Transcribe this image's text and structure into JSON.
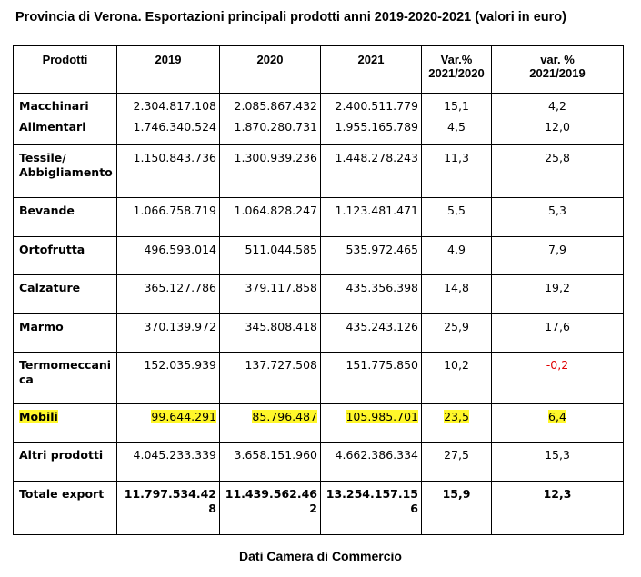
{
  "title": "Provincia di Verona. Esportazioni principali prodotti anni 2019-2020-2021 (valori in euro)",
  "headers": {
    "prodotti": "Prodotti",
    "y2019": "2019",
    "y2020": "2020",
    "y2021": "2021",
    "var1_l1": "Var.%",
    "var1_l2": "2021/2020",
    "var2_l1": "var. %",
    "var2_l2": "2021/2019"
  },
  "rows": [
    {
      "name": "Macchinari",
      "v2019": "2.304.817.108",
      "v2020": "2.085.867.432",
      "v2021": "2.400.511.779",
      "var2120": "15,1",
      "var2119": "4,2"
    },
    {
      "name": "Alimentari",
      "v2019": "1.746.340.524",
      "v2020": "1.870.280.731",
      "v2021": "1.955.165.789",
      "var2120": "4,5",
      "var2119": "12,0"
    },
    {
      "name": "Tessile/ Abbigliamento",
      "v2019": "1.150.843.736",
      "v2020": "1.300.939.236",
      "v2021": "1.448.278.243",
      "var2120": "11,3",
      "var2119": "25,8"
    },
    {
      "name": "Bevande",
      "v2019": "1.066.758.719",
      "v2020": "1.064.828.247",
      "v2021": "1.123.481.471",
      "var2120": "5,5",
      "var2119": "5,3"
    },
    {
      "name": "Ortofrutta",
      "v2019": "496.593.014",
      "v2020": "511.044.585",
      "v2021": "535.972.465",
      "var2120": "4,9",
      "var2119": "7,9"
    },
    {
      "name": "Calzature",
      "v2019": "365.127.786",
      "v2020": "379.117.858",
      "v2021": "435.356.398",
      "var2120": "14,8",
      "var2119": "19,2"
    },
    {
      "name": "Marmo",
      "v2019": "370.139.972",
      "v2020": "345.808.418",
      "v2021": "435.243.126",
      "var2120": "25,9",
      "var2119": "17,6"
    },
    {
      "name": "Termomeccanica",
      "v2019": "152.035.939",
      "v2020": "137.727.508",
      "v2021": "151.775.850",
      "var2120": "10,2",
      "var2119": "-0,2"
    },
    {
      "name": "Mobili",
      "v2019": "99.644.291",
      "v2020": "85.796.487",
      "v2021": "105.985.701",
      "var2120": "23,5",
      "var2119": "6,4"
    },
    {
      "name": "Altri prodotti",
      "v2019": "4.045.233.339",
      "v2020": "3.658.151.960",
      "v2021": "4.662.386.334",
      "var2120": "27,5",
      "var2119": "15,3"
    },
    {
      "name": "Totale export",
      "v2019": "11.797.534.428",
      "v2020": "11.439.562.462",
      "v2021": "13.254.157.156",
      "var2120": "15,9",
      "var2119": "12,3"
    }
  ],
  "highlight_color": "#fff72a",
  "negative_color": "#e00000",
  "source": "Dati Camera di Commercio"
}
